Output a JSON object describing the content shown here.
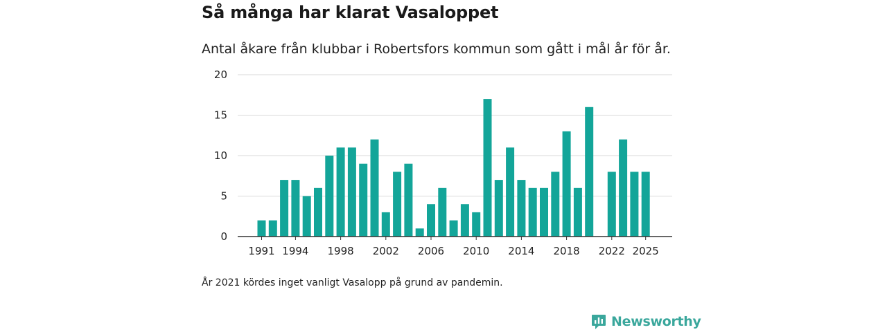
{
  "title": "Så många har klarat Vasaloppet",
  "subtitle": "Antal åkare från klubbar i Robertsfors kommun som gått i mål år för år.",
  "note": "År 2021 kördes inget vanligt Vasalopp på grund av pandemin.",
  "brand": {
    "name": "Newsworthy",
    "icon": "newsworthy-logo-icon",
    "color": "#3aa79c"
  },
  "colors": {
    "bar": "#13a599",
    "grid": "#d9d9d9",
    "axis": "#333333"
  },
  "chart_data": {
    "type": "bar",
    "title": "Så många har klarat Vasaloppet",
    "xlabel": "",
    "ylabel": "",
    "ylim": [
      0,
      20
    ],
    "yticks": [
      0,
      5,
      10,
      15,
      20
    ],
    "xticks": [
      "1991",
      "1994",
      "1998",
      "2002",
      "2006",
      "2010",
      "2014",
      "2018",
      "2022",
      "2025"
    ],
    "categories": [
      "1991",
      "1992",
      "1993",
      "1994",
      "1995",
      "1996",
      "1997",
      "1998",
      "1999",
      "2000",
      "2001",
      "2002",
      "2003",
      "2004",
      "2005",
      "2006",
      "2007",
      "2008",
      "2009",
      "2010",
      "2011",
      "2012",
      "2013",
      "2014",
      "2015",
      "2016",
      "2017",
      "2018",
      "2019",
      "2020",
      "2021",
      "2022",
      "2023",
      "2024",
      "2025"
    ],
    "values": [
      2,
      2,
      7,
      7,
      5,
      6,
      10,
      11,
      11,
      9,
      12,
      3,
      8,
      9,
      1,
      4,
      6,
      2,
      4,
      3,
      17,
      7,
      11,
      7,
      6,
      6,
      8,
      13,
      6,
      16,
      null,
      8,
      12,
      8,
      8
    ],
    "grid": true
  }
}
